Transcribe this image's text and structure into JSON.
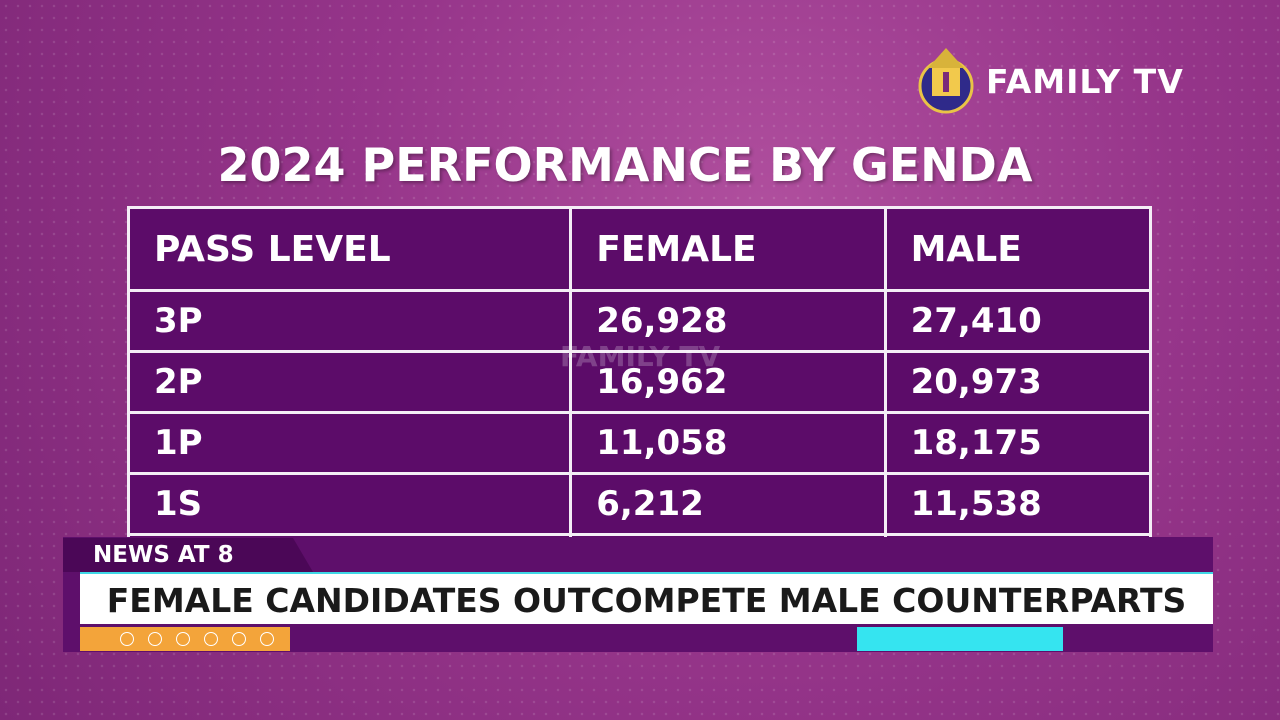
{
  "logo": {
    "text": "FAMILY TV"
  },
  "title": "2024 PERFORMANCE BY GENDA",
  "table": {
    "header": [
      "PASS LEVEL",
      "FEMALE",
      "MALE"
    ],
    "rows": [
      [
        "3P",
        "26,928",
        "27,410"
      ],
      [
        "2P",
        "16,962",
        "20,973"
      ],
      [
        "1P",
        "11,058",
        "18,175"
      ],
      [
        "1S",
        "6,212",
        "11,538"
      ]
    ]
  },
  "watermark": "FAMILY TV",
  "lower_third": {
    "tag": "NEWS AT 8",
    "headline": "FEMALE CANDIDATES OUTCOMPETE MALE COUNTERPARTS"
  }
}
